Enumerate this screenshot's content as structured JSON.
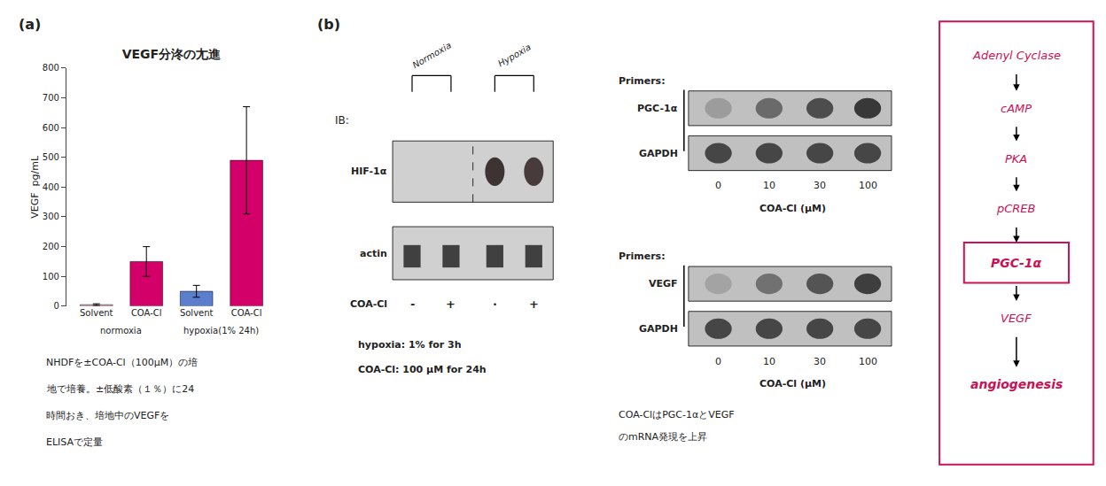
{
  "chart_data": [
    {
      "type": "bar",
      "title": "VEGF分泈の尢進",
      "categories": [
        "Solvent",
        "COA-Cl",
        "Solvent",
        "COA-Cl"
      ],
      "values": [
        5,
        150,
        50,
        490
      ],
      "errors": [
        3,
        50,
        20,
        180
      ],
      "colors": [
        "#e8aabf",
        "#d4006a",
        "#5b7fcc",
        "#d4006a"
      ],
      "ylabel": "VEGF  pg/mL",
      "ylim": [
        0,
        800
      ],
      "yticks": [
        0,
        100,
        200,
        300,
        400,
        500,
        600,
        700,
        800
      ],
      "grid": false,
      "annotations": [
        "(a)",
        "normoxia",
        "hypoxia(1% 24h)",
        "NHDFを±COA-Cl（100μM）の培",
        "地で培養。±低酸素（１％）に24",
        "時間おき、培地中のVEGFを",
        "ELISAで定量"
      ]
    },
    {
      "type": "blot",
      "annotations": [
        "(b)",
        "Normoxia",
        "Hypoxia",
        "IB:",
        "HIF-1α",
        "actin",
        "COA-Cl",
        "-",
        "+",
        "·",
        "+",
        "hypoxia: 1% for 3h",
        "COA-Cl: 100 μM for 24h"
      ]
    },
    {
      "type": "gel",
      "annotations": [
        "Primers:",
        "PGC-1α",
        "GAPDH",
        "0",
        "10",
        "30",
        "100",
        "COA-Cl (μM)",
        "Primers:",
        "VEGF",
        "GAPDH",
        "0",
        "10",
        "30",
        "100",
        "COA-Cl (μM)",
        "COA-ClはPGC-1αとVEGF",
        "のmRNA発現を上昇"
      ]
    },
    {
      "type": "pathway",
      "color": "#cc1155",
      "annotations": [
        "Adenyl Cyclase",
        "cAMP",
        "PKA",
        "pCREB",
        "PGC-1α",
        "VEGF",
        "angiogenesis"
      ]
    }
  ]
}
